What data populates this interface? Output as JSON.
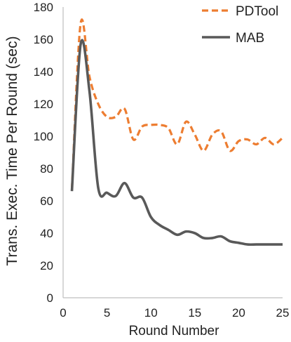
{
  "chart_data": {
    "type": "line",
    "title": "",
    "xlabel": "Round Number",
    "ylabel": "Trans. Exec. Time Per Round (sec)",
    "xlim": [
      0,
      25
    ],
    "ylim": [
      0,
      180
    ],
    "xticks": [
      0,
      5,
      10,
      15,
      20,
      25
    ],
    "yticks": [
      0,
      20,
      40,
      60,
      80,
      100,
      120,
      140,
      160,
      180
    ],
    "grid": false,
    "legend_position": "top-right",
    "series": [
      {
        "name": "PDTool",
        "color": "#ED7D31",
        "style": "dashed",
        "x": [
          1,
          2,
          3,
          4,
          5,
          6,
          7,
          8,
          9,
          10,
          11,
          12,
          13,
          14,
          15,
          16,
          17,
          18,
          19,
          20,
          21,
          22,
          23,
          24,
          25
        ],
        "y": [
          67,
          170,
          137,
          120,
          112,
          112,
          117,
          98,
          106,
          107,
          107,
          105,
          95,
          109,
          101,
          91,
          101,
          103,
          91,
          97,
          98,
          95,
          99,
          95,
          99
        ]
      },
      {
        "name": "MAB",
        "color": "#595959",
        "style": "solid",
        "x": [
          1,
          2,
          3,
          4,
          5,
          6,
          7,
          8,
          9,
          10,
          11,
          12,
          13,
          14,
          15,
          16,
          17,
          18,
          19,
          20,
          21,
          22,
          23,
          24,
          25
        ],
        "y": [
          66,
          157,
          128,
          68,
          65,
          63,
          71,
          62,
          62,
          50,
          45,
          42,
          39,
          41,
          40,
          37,
          37,
          38,
          35,
          34,
          33,
          33,
          33,
          33,
          33
        ]
      }
    ]
  }
}
